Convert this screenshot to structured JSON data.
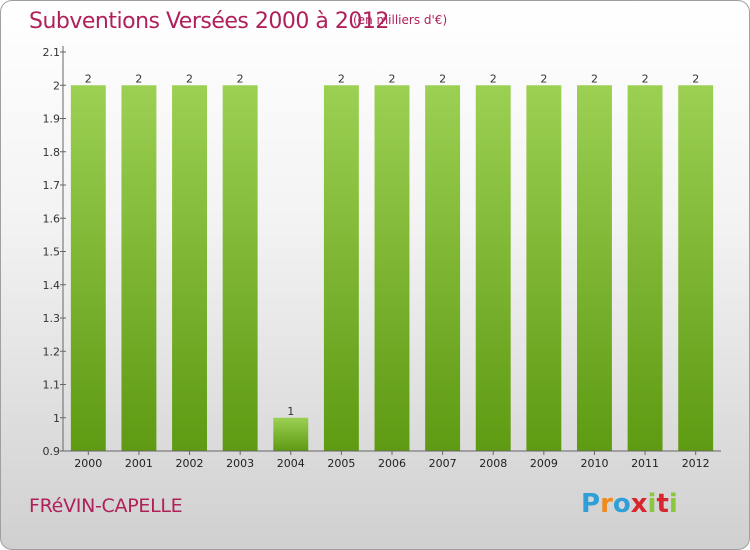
{
  "header": {
    "title": "Subventions Versées 2000 à 2012",
    "subtitle": "(en milliers d'€)"
  },
  "footer": {
    "commune": "FRéVIN-CAPELLE",
    "logo_text": "Proxiti"
  },
  "colors": {
    "title": "#b0205a",
    "bar_light": "#9cd053",
    "bar_dark": "#5e9a12",
    "logo_letters": [
      "#2f9fd8",
      "#f08a1c",
      "#2f9fd8",
      "#d8262e",
      "#8cc63f",
      "#d8262e",
      "#8cc63f"
    ]
  },
  "chart_data": {
    "type": "bar",
    "title": "Subventions Versées 2000 à 2012",
    "subtitle": "(en milliers d'€)",
    "xlabel": "",
    "ylabel": "",
    "categories": [
      "2000",
      "2001",
      "2002",
      "2003",
      "2004",
      "2005",
      "2006",
      "2007",
      "2008",
      "2009",
      "2010",
      "2011",
      "2012"
    ],
    "values": [
      2,
      2,
      2,
      2,
      1,
      2,
      2,
      2,
      2,
      2,
      2,
      2,
      2
    ],
    "data_labels": [
      "2",
      "2",
      "2",
      "2",
      "1",
      "2",
      "2",
      "2",
      "2",
      "2",
      "2",
      "2",
      "2"
    ],
    "ylim": [
      0.9,
      2.1
    ],
    "yticks": [
      0.9,
      1,
      1.1,
      1.2,
      1.3,
      1.4,
      1.5,
      1.6,
      1.7,
      1.8,
      1.9,
      2,
      2.1
    ],
    "ytick_labels": [
      "0.9",
      "1",
      "1.1",
      "1.2",
      "1.3",
      "1.4",
      "1.5",
      "1.6",
      "1.7",
      "1.8",
      "1.9",
      "2",
      "2.1"
    ],
    "grid": false,
    "legend": "none"
  }
}
